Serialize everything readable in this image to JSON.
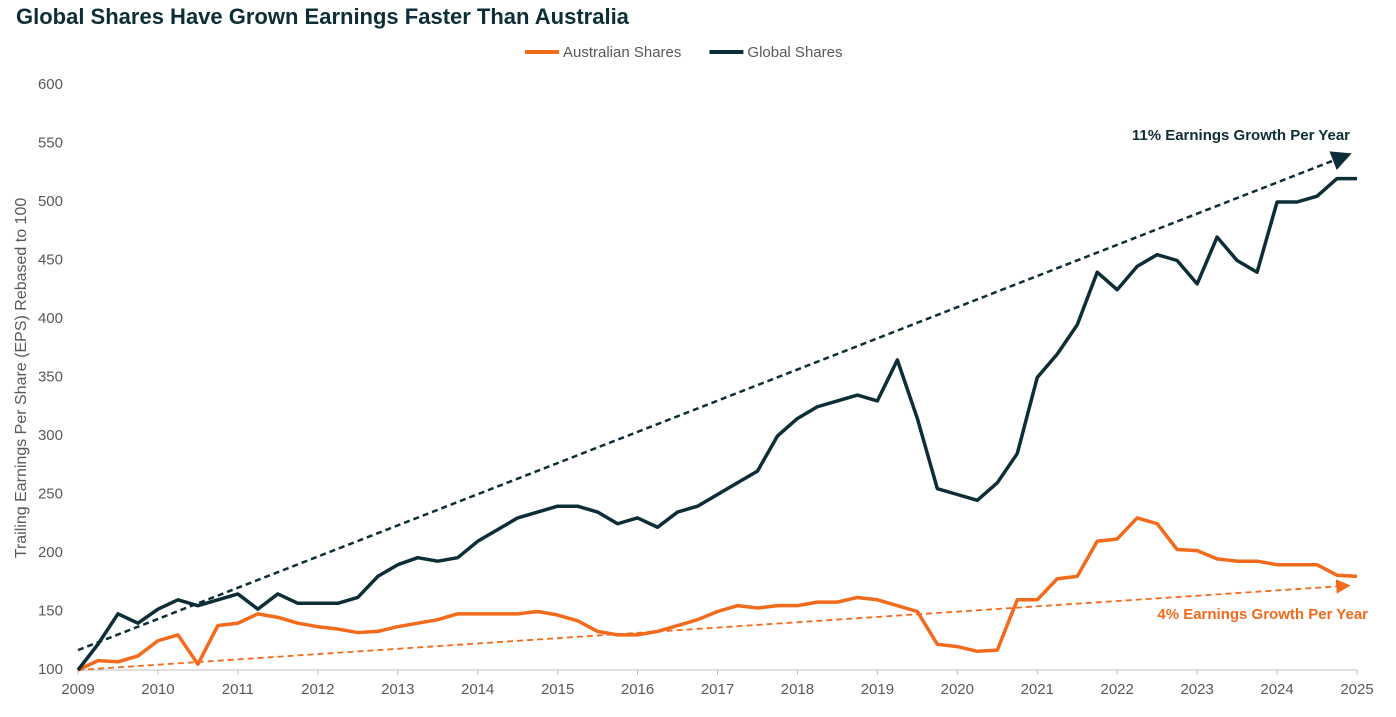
{
  "chart_data": {
    "type": "line",
    "title": "Global Shares Have Grown Earnings Faster Than Australia",
    "y_label": "Trailing Earnings Per Share (EPS) Rebased to 100",
    "x": [
      2009,
      2009.25,
      2009.5,
      2009.75,
      2010,
      2010.25,
      2010.5,
      2010.75,
      2011,
      2011.25,
      2011.5,
      2011.75,
      2012,
      2012.25,
      2012.5,
      2012.75,
      2013,
      2013.25,
      2013.5,
      2013.75,
      2014,
      2014.25,
      2014.5,
      2014.75,
      2015,
      2015.25,
      2015.5,
      2015.75,
      2016,
      2016.25,
      2016.5,
      2016.75,
      2017,
      2017.25,
      2017.5,
      2017.75,
      2018,
      2018.25,
      2018.5,
      2018.75,
      2019,
      2019.25,
      2019.5,
      2019.75,
      2020,
      2020.25,
      2020.5,
      2020.75,
      2021,
      2021.25,
      2021.5,
      2021.75,
      2022,
      2022.25,
      2022.5,
      2022.75,
      2023,
      2023.25,
      2023.5,
      2023.75,
      2024,
      2024.25,
      2024.5,
      2024.75,
      2025
    ],
    "series": [
      {
        "name": "Australian Shares",
        "color": "#f26a1b",
        "values": [
          100,
          108,
          107,
          112,
          125,
          130,
          105,
          138,
          140,
          148,
          145,
          140,
          137,
          135,
          132,
          133,
          137,
          140,
          143,
          148,
          148,
          148,
          148,
          150,
          147,
          142,
          133,
          130,
          130,
          133,
          138,
          143,
          150,
          155,
          153,
          155,
          155,
          158,
          158,
          162,
          160,
          155,
          150,
          122,
          120,
          116,
          117,
          160,
          160,
          178,
          180,
          210,
          212,
          230,
          225,
          203,
          202,
          195,
          193,
          193,
          190,
          190,
          190,
          181,
          180
        ]
      },
      {
        "name": "Global Shares",
        "color": "#0d2e36",
        "values": [
          100,
          122,
          148,
          140,
          152,
          160,
          155,
          160,
          165,
          152,
          165,
          157,
          157,
          157,
          162,
          180,
          190,
          196,
          193,
          196,
          210,
          220,
          230,
          235,
          240,
          240,
          235,
          225,
          230,
          222,
          235,
          240,
          250,
          260,
          270,
          300,
          315,
          325,
          330,
          335,
          330,
          365,
          315,
          255,
          250,
          245,
          260,
          285,
          350,
          370,
          395,
          440,
          425,
          445,
          455,
          450,
          430,
          470,
          450,
          440,
          500,
          500,
          505,
          520,
          520
        ]
      }
    ],
    "trend_lines": [
      {
        "text": "11% Earnings Growth Per Year",
        "color": "#0d2e36",
        "x": [
          2009,
          2025
        ],
        "values": [
          117,
          540
        ]
      },
      {
        "text": "4% Earnings Growth Per Year",
        "color": "#f26a1b",
        "x": [
          2009,
          2025
        ],
        "values": [
          100,
          172
        ]
      }
    ],
    "xlim": [
      2009,
      2025
    ],
    "xticks": [
      2009,
      2010,
      2011,
      2012,
      2013,
      2014,
      2015,
      2016,
      2017,
      2018,
      2019,
      2020,
      2021,
      2022,
      2023,
      2024,
      2025
    ],
    "ylim": [
      100,
      600
    ],
    "yticks": [
      100,
      150,
      200,
      250,
      300,
      350,
      400,
      450,
      500,
      550,
      600
    ]
  }
}
